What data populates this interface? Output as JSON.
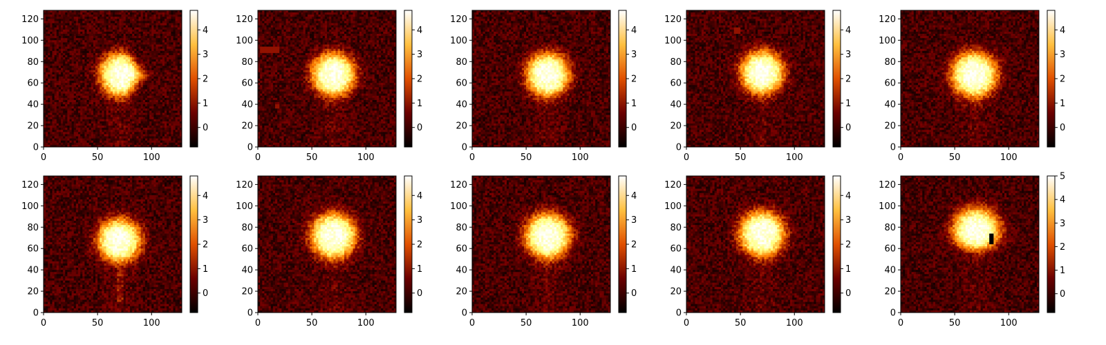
{
  "chart_data": [
    {
      "type": "heatmap",
      "panel": "row1-col1",
      "xlim": [
        0,
        128
      ],
      "ylim": [
        0,
        128
      ],
      "xticks": [
        "0",
        "50",
        "100"
      ],
      "yticks": [
        "0",
        "20",
        "40",
        "60",
        "80",
        "100",
        "120"
      ],
      "colormap": "afmhot",
      "clim": [
        -0.8,
        4.8
      ],
      "colorbar_ticks": [
        "0",
        "1",
        "2",
        "3",
        "4"
      ],
      "blob": {
        "cx": 72,
        "cy": 68,
        "radius": 20,
        "peak": 4.6,
        "shape": "slightly triangular, tapering right"
      },
      "artifacts": []
    },
    {
      "type": "heatmap",
      "panel": "row1-col2",
      "xlim": [
        0,
        128
      ],
      "ylim": [
        0,
        128
      ],
      "xticks": [
        "0",
        "50",
        "100"
      ],
      "yticks": [
        "0",
        "20",
        "40",
        "60",
        "80",
        "100",
        "120"
      ],
      "colormap": "afmhot",
      "clim": [
        -0.8,
        4.8
      ],
      "colorbar_ticks": [
        "0",
        "1",
        "2",
        "3",
        "4"
      ],
      "blob": {
        "cx": 70,
        "cy": 68,
        "radius": 20,
        "peak": 4.6,
        "shape": "rounded"
      },
      "artifacts": [
        {
          "kind": "dark-red rectangle",
          "x": [
            2,
            20
          ],
          "y": [
            89,
            93
          ]
        },
        {
          "kind": "small dark spot",
          "x": [
            16,
            19
          ],
          "y": [
            37,
            40
          ]
        }
      ]
    },
    {
      "type": "heatmap",
      "panel": "row1-col3",
      "xlim": [
        0,
        128
      ],
      "ylim": [
        0,
        128
      ],
      "xticks": [
        "0",
        "50",
        "100"
      ],
      "yticks": [
        "0",
        "20",
        "40",
        "60",
        "80",
        "100",
        "120"
      ],
      "colormap": "afmhot",
      "clim": [
        -0.8,
        4.8
      ],
      "colorbar_ticks": [
        "0",
        "1",
        "2",
        "3",
        "4"
      ],
      "blob": {
        "cx": 70,
        "cy": 68,
        "radius": 20,
        "peak": 4.6,
        "shape": "rounded"
      },
      "artifacts": []
    },
    {
      "type": "heatmap",
      "panel": "row1-col4",
      "xlim": [
        0,
        128
      ],
      "ylim": [
        0,
        128
      ],
      "xticks": [
        "0",
        "50",
        "100"
      ],
      "yticks": [
        "0",
        "20",
        "40",
        "60",
        "80",
        "100",
        "120"
      ],
      "colormap": "afmhot",
      "clim": [
        -0.8,
        4.8
      ],
      "colorbar_ticks": [
        "0",
        "1",
        "2",
        "3",
        "4"
      ],
      "blob": {
        "cx": 70,
        "cy": 70,
        "radius": 20,
        "peak": 4.6,
        "shape": "rounded"
      },
      "artifacts": [
        {
          "kind": "small dark-red square",
          "x": [
            44,
            50
          ],
          "y": [
            106,
            112
          ]
        }
      ]
    },
    {
      "type": "heatmap",
      "panel": "row1-col5",
      "xlim": [
        0,
        128
      ],
      "ylim": [
        0,
        128
      ],
      "xticks": [
        "0",
        "50",
        "100"
      ],
      "yticks": [
        "0",
        "20",
        "40",
        "60",
        "80",
        "100",
        "120"
      ],
      "colormap": "afmhot",
      "clim": [
        -0.8,
        4.8
      ],
      "colorbar_ticks": [
        "0",
        "1",
        "2",
        "3",
        "4"
      ],
      "blob": {
        "cx": 68,
        "cy": 68,
        "radius": 21,
        "peak": 4.6,
        "shape": "rounded"
      },
      "artifacts": []
    },
    {
      "type": "heatmap",
      "panel": "row2-col1",
      "xlim": [
        0,
        128
      ],
      "ylim": [
        0,
        128
      ],
      "xticks": [
        "0",
        "50",
        "100"
      ],
      "yticks": [
        "0",
        "20",
        "40",
        "60",
        "80",
        "100",
        "120"
      ],
      "colormap": "afmhot",
      "clim": [
        -0.8,
        4.8
      ],
      "colorbar_ticks": [
        "0",
        "1",
        "2",
        "3",
        "4"
      ],
      "blob": {
        "cx": 70,
        "cy": 68,
        "radius": 20,
        "peak": 4.6,
        "shape": "rounded"
      },
      "artifacts": [
        {
          "kind": "faint vertical streak",
          "x": [
            68,
            74
          ],
          "y": [
            10,
            40
          ]
        }
      ]
    },
    {
      "type": "heatmap",
      "panel": "row2-col2",
      "xlim": [
        0,
        128
      ],
      "ylim": [
        0,
        128
      ],
      "xticks": [
        "0",
        "50",
        "100"
      ],
      "yticks": [
        "0",
        "20",
        "40",
        "60",
        "80",
        "100",
        "120"
      ],
      "colormap": "afmhot",
      "clim": [
        -0.8,
        4.8
      ],
      "colorbar_ticks": [
        "0",
        "1",
        "2",
        "3",
        "4"
      ],
      "blob": {
        "cx": 70,
        "cy": 72,
        "radius": 21,
        "peak": 4.6,
        "shape": "rounded"
      },
      "artifacts": []
    },
    {
      "type": "heatmap",
      "panel": "row2-col3",
      "xlim": [
        0,
        128
      ],
      "ylim": [
        0,
        128
      ],
      "xticks": [
        "0",
        "50",
        "100"
      ],
      "yticks": [
        "0",
        "20",
        "40",
        "60",
        "80",
        "100",
        "120"
      ],
      "colormap": "afmhot",
      "clim": [
        -0.8,
        4.8
      ],
      "colorbar_ticks": [
        "0",
        "1",
        "2",
        "3",
        "4"
      ],
      "blob": {
        "cx": 70,
        "cy": 72,
        "radius": 21,
        "peak": 4.6,
        "shape": "rounded"
      },
      "artifacts": []
    },
    {
      "type": "heatmap",
      "panel": "row2-col4",
      "xlim": [
        0,
        128
      ],
      "ylim": [
        0,
        128
      ],
      "xticks": [
        "0",
        "50",
        "100"
      ],
      "yticks": [
        "0",
        "20",
        "40",
        "60",
        "80",
        "100",
        "120"
      ],
      "colormap": "afmhot",
      "clim": [
        -0.8,
        4.8
      ],
      "colorbar_ticks": [
        "0",
        "1",
        "2",
        "3",
        "4"
      ],
      "blob": {
        "cx": 70,
        "cy": 74,
        "radius": 21,
        "peak": 4.6,
        "shape": "rounded"
      },
      "artifacts": []
    },
    {
      "type": "heatmap",
      "panel": "row2-col5",
      "xlim": [
        0,
        128
      ],
      "ylim": [
        0,
        128
      ],
      "xticks": [
        "0",
        "50",
        "100"
      ],
      "yticks": [
        "0",
        "20",
        "40",
        "60",
        "80",
        "100",
        "120"
      ],
      "colormap": "afmhot",
      "clim": [
        -0.8,
        5.0
      ],
      "colorbar_ticks": [
        "0",
        "1",
        "2",
        "3",
        "4",
        "5"
      ],
      "blob": {
        "cx": 70,
        "cy": 76,
        "radius": 22,
        "peak": 4.8,
        "shape": "rounded, flattened underside"
      },
      "artifacts": [
        {
          "kind": "dark vertical bar",
          "x": [
            83,
            86
          ],
          "y": [
            64,
            74
          ]
        }
      ]
    }
  ]
}
